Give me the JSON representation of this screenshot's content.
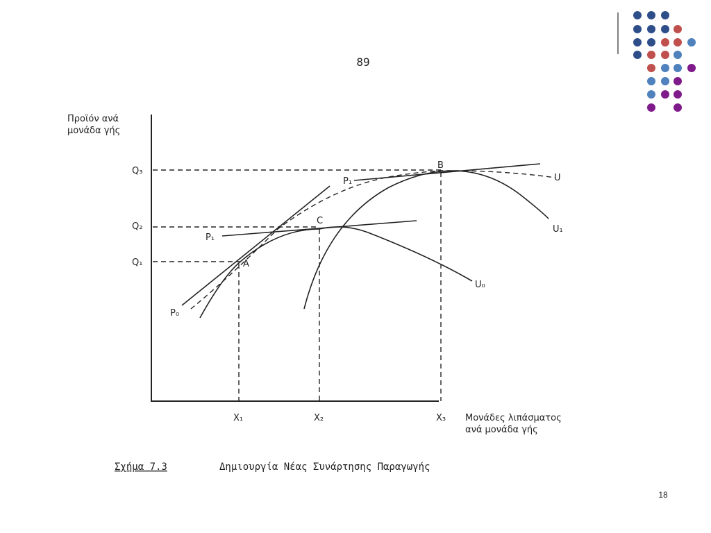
{
  "page_number": "89",
  "y_axis_label": [
    "Προϊόν ανά",
    "μονάδα γής"
  ],
  "x_axis_label": [
    "Μονάδες λιπάσματος",
    "ανά μονάδα γής"
  ],
  "y_levels": [
    "Q₃",
    "Q₂",
    "Q₁"
  ],
  "x_levels": [
    "X₁",
    "X₂",
    "X₃"
  ],
  "points": [
    "A",
    "B",
    "C"
  ],
  "lines": [
    "P₀",
    "P₁",
    "P₁"
  ],
  "curves": [
    "U",
    "U₁",
    "U₀"
  ],
  "caption": {
    "figure": "Σχήμα 7.3",
    "title": "Δημιουργία Νέας Συνάρτησης Παραγωγής"
  },
  "slide_number": "18"
}
